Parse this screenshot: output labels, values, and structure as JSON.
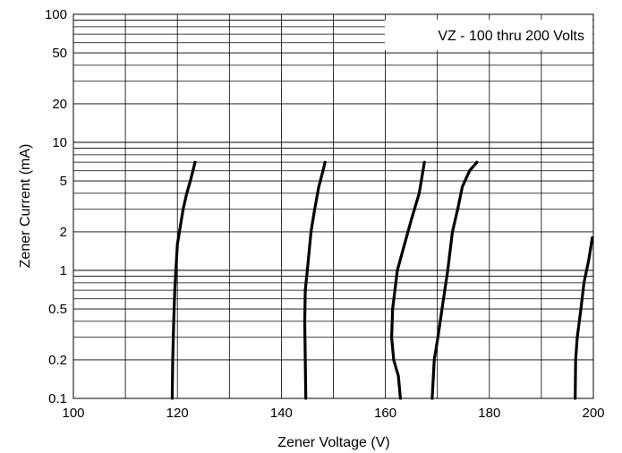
{
  "chart_data": {
    "type": "line",
    "title": "",
    "annotation": "VZ - 100 thru 200 Volts",
    "xlabel": "Zener Voltage (V)",
    "ylabel": "Zener Current (mA)",
    "xlim": [
      100,
      200
    ],
    "ylim": [
      0.1,
      100
    ],
    "yscale": "log",
    "grid": true,
    "x_ticks": [
      100,
      120,
      140,
      160,
      180,
      200
    ],
    "x_tick_labels": [
      "100",
      "120",
      "140",
      "160",
      "180",
      "200"
    ],
    "y_ticks": [
      0.1,
      0.2,
      0.5,
      1,
      2,
      5,
      10,
      20,
      50,
      100
    ],
    "y_tick_labels": [
      "0.1",
      "0.2",
      "0.5",
      "1",
      "2",
      "5",
      "10",
      "20",
      "50",
      "100"
    ],
    "series": [
      {
        "x": [
          119.0,
          119.1,
          119.3,
          119.5,
          119.7,
          120.0,
          120.4,
          121.1,
          121.8,
          122.5,
          123.4
        ],
        "y": [
          0.1,
          0.2,
          0.4,
          0.7,
          1.0,
          1.6,
          2.0,
          3.0,
          4.0,
          5.0,
          7.0
        ]
      },
      {
        "x": [
          144.7,
          144.6,
          144.5,
          144.6,
          145.0,
          145.7,
          146.4,
          147.2,
          148.0,
          148.4
        ],
        "y": [
          0.1,
          0.2,
          0.4,
          0.7,
          1.0,
          2.0,
          3.0,
          4.5,
          6.0,
          7.0
        ]
      },
      {
        "x": [
          162.9,
          162.5,
          161.6,
          161.2,
          161.4,
          162.3,
          163.5,
          165.0,
          166.5,
          167.5
        ],
        "y": [
          0.1,
          0.15,
          0.2,
          0.3,
          0.5,
          1.0,
          1.5,
          2.5,
          4.0,
          7.0
        ]
      },
      {
        "x": [
          169.0,
          169.4,
          170.1,
          170.9,
          172.0,
          172.9,
          173.9,
          174.8,
          176.2,
          177.6
        ],
        "y": [
          0.1,
          0.2,
          0.3,
          0.5,
          1.0,
          2.0,
          3.0,
          4.5,
          6.0,
          7.0
        ]
      },
      {
        "x": [
          196.5,
          196.6,
          196.9,
          197.6,
          198.2,
          199.1,
          199.8
        ],
        "y": [
          0.1,
          0.2,
          0.3,
          0.5,
          0.8,
          1.2,
          1.8
        ]
      }
    ]
  }
}
